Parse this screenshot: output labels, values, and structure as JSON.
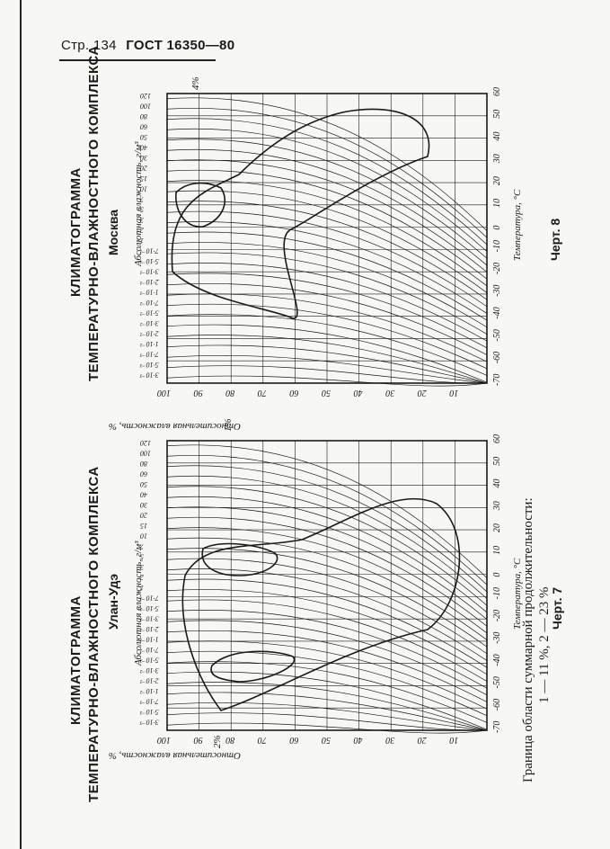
{
  "header": {
    "page": "Стр. 134",
    "standard": "ГОСТ 16350—80"
  },
  "chart_top": {
    "title_line1": "КЛИМАТОГРАММА",
    "title_line2": "ТЕМПЕРАТУРНО-ВЛАЖНОСТНОГО КОМПЛЕКСА",
    "city": "Москва",
    "abs_humidity_label": "Абсолютная влажность, г/м³",
    "temperature_label": "Температура, °С",
    "relative_humidity_label": "Относительная влажность, %",
    "corner_label": "4%",
    "figure": "Черт. 8",
    "zone_labels": [
      "1"
    ]
  },
  "chart_bottom": {
    "title_line1": "КЛИМАТОГРАММА",
    "title_line2": "ТЕМПЕРАТУРНО-ВЛАЖНОСТНОГО КОМПЛЕКСА",
    "city": "Улан-Удэ",
    "abs_humidity_label": "Абсолютная влажность, г/м³",
    "temperature_label": "Температура, °С",
    "relative_humidity_label": "Относительная влажность, %",
    "corner_label": "1%",
    "side_label": "2%",
    "figure": "Черт. 7",
    "zone_labels": [
      "1",
      "2"
    ]
  },
  "ticks": {
    "temperature": [
      "-70",
      "-60",
      "-50",
      "-40",
      "-30",
      "-20",
      "-10",
      "0",
      "10",
      "20",
      "30",
      "40",
      "50",
      "60"
    ],
    "relative": [
      "100",
      "90",
      "80",
      "70",
      "60",
      "50",
      "40",
      "30",
      "20",
      "10"
    ],
    "absolute": [
      "3·10⁻³",
      "5·10⁻³",
      "7·10⁻³",
      "1·10⁻²",
      "2·10⁻²",
      "3·10⁻²",
      "5·10⁻²",
      "7·10⁻²",
      "1·10⁻¹",
      "2·10⁻¹",
      "3·10⁻¹",
      "5·10⁻¹",
      "7·10⁻¹",
      "1",
      "2",
      "3",
      "5",
      "7",
      "10",
      "15",
      "20",
      "30",
      "40",
      "50",
      "60",
      "80",
      "100",
      "120"
    ]
  },
  "legend": {
    "line1": "Граница области суммарной продолжительности:",
    "line2": "1 — 11 %, 2 — 23 %"
  },
  "colors": {
    "ink": "#1a1a1a",
    "paper": "#f7f7f5"
  }
}
